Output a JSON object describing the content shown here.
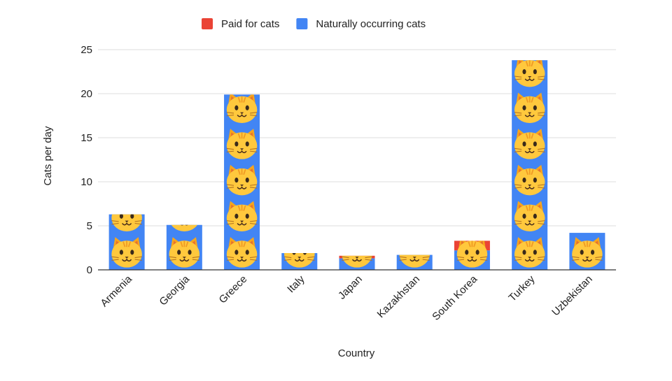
{
  "chart_data": {
    "type": "bar",
    "stacked": true,
    "title": "",
    "xlabel": "Country",
    "ylabel": "Cats per day",
    "ylim": [
      0,
      25
    ],
    "yticks": [
      0,
      5,
      10,
      15,
      20,
      25
    ],
    "grid": true,
    "legend": "top-center",
    "categories": [
      "Armenia",
      "Georgia",
      "Greece",
      "Italy",
      "Japan",
      "Kazakhstan",
      "South Korea",
      "Turkey",
      "Uzbekistan"
    ],
    "series": [
      {
        "name": "Naturally occurring cats",
        "color": "#4285F4",
        "values": [
          6.3,
          5.1,
          19.9,
          1.9,
          1.3,
          1.7,
          2.2,
          23.8,
          4.2
        ]
      },
      {
        "name": "Paid for cats",
        "color": "#EA4335",
        "values": [
          0,
          0,
          0,
          0,
          0.3,
          0,
          1.1,
          0,
          0
        ]
      }
    ],
    "legend_order": [
      "Paid for cats",
      "Naturally occurring cats"
    ],
    "mark_icon": "cat-face-emoji"
  }
}
